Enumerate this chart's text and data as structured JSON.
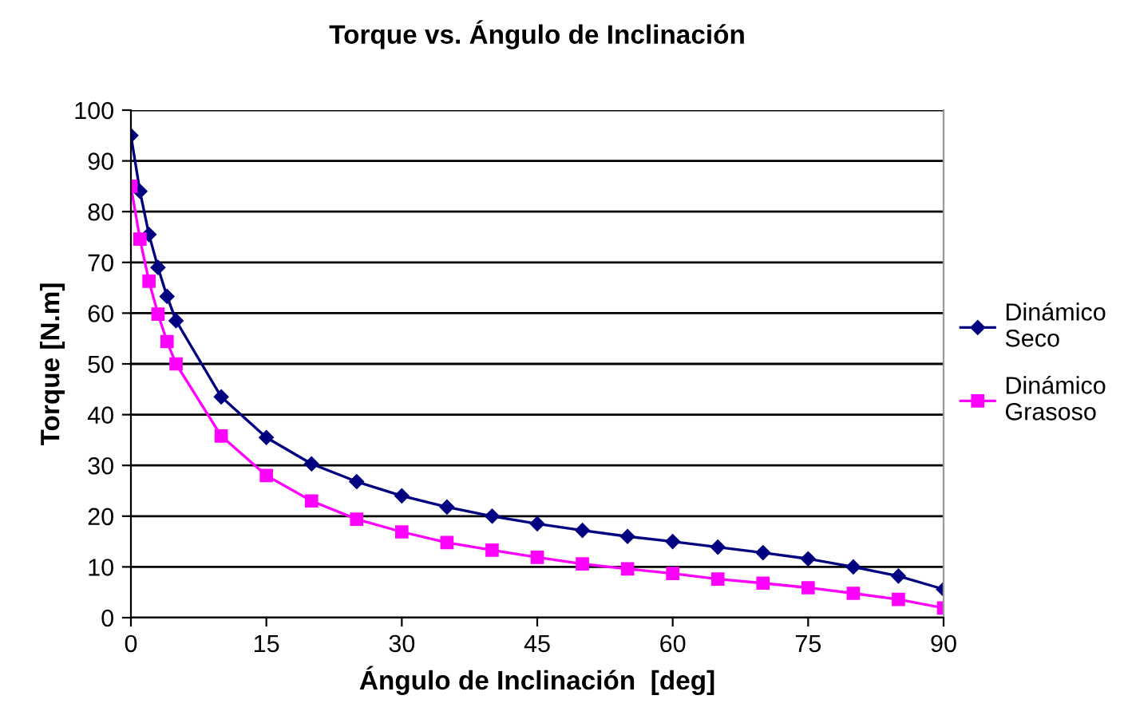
{
  "chart_data": {
    "type": "line",
    "title": "Torque vs. Ángulo de Inclinación",
    "xlabel": "Ángulo de Inclinación  [deg]",
    "ylabel": "Torque [N.m]",
    "x": [
      0,
      1,
      2,
      3,
      4,
      5,
      10,
      15,
      20,
      25,
      30,
      35,
      40,
      45,
      50,
      55,
      60,
      65,
      70,
      75,
      80,
      85,
      90
    ],
    "series": [
      {
        "name": "Dinámico\nSeco",
        "color": "#000080",
        "marker": "diamond",
        "values": [
          95,
          84,
          75.5,
          69,
          63.3,
          58.5,
          43.5,
          35.5,
          30.3,
          26.8,
          24,
          21.8,
          20,
          18.5,
          17.2,
          16,
          15,
          13.9,
          12.8,
          11.6,
          10,
          8.2,
          5.6
        ]
      },
      {
        "name": "Dinámico\nGrasoso",
        "color": "#ff00ff",
        "marker": "square",
        "values": [
          85,
          74.6,
          66.3,
          59.8,
          54.4,
          50,
          35.8,
          28,
          23,
          19.4,
          16.9,
          14.8,
          13.3,
          11.9,
          10.6,
          9.6,
          8.7,
          7.6,
          6.8,
          5.9,
          4.8,
          3.6,
          1.9
        ]
      }
    ],
    "xlim": [
      0,
      90
    ],
    "xticks": [
      0,
      15,
      30,
      45,
      60,
      75,
      90
    ],
    "ylim": [
      0,
      100
    ],
    "yticks": [
      0,
      10,
      20,
      30,
      40,
      50,
      60,
      70,
      80,
      90,
      100
    ],
    "grid": "y",
    "legend": "right",
    "line_style": "solid"
  }
}
